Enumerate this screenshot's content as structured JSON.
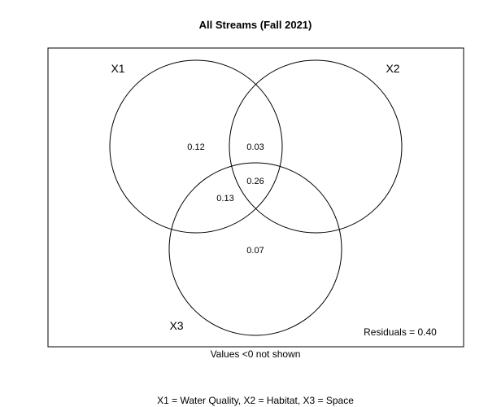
{
  "title": "All Streams (Fall 2021)",
  "sets": [
    {
      "label": "X1"
    },
    {
      "label": "X2"
    },
    {
      "label": "X3"
    }
  ],
  "regions": {
    "x1_only": "0.12",
    "x1_x2": "0.03",
    "x1_x2_x3": "0.26",
    "x1_x3": "0.13",
    "x3_only": "0.07"
  },
  "residuals": "Residuals = 0.40",
  "note": "Values <0 not shown",
  "legend": "X1 = Water Quality, X2 = Habitat, X3 = Space"
}
